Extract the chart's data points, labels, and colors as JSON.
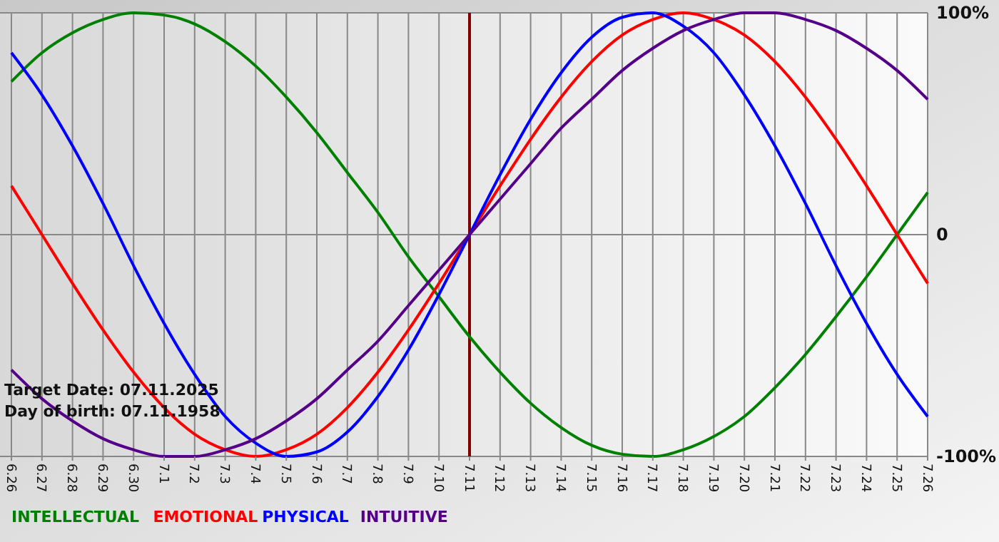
{
  "chart_data": {
    "type": "line",
    "categories": [
      "6.26",
      "6.27",
      "6.28",
      "6.29",
      "6.30",
      "7.1",
      "7.2",
      "7.3",
      "7.4",
      "7.5",
      "7.6",
      "7.7",
      "7.8",
      "7.9",
      "7.10",
      "7.11",
      "7.12",
      "7.13",
      "7.14",
      "7.15",
      "7.16",
      "7.17",
      "7.18",
      "7.19",
      "7.20",
      "7.21",
      "7.22",
      "7.23",
      "7.24",
      "7.25",
      "7.26"
    ],
    "series": [
      {
        "name": "INTELLECTUAL",
        "color": "#008000",
        "values": [
          69,
          82,
          91,
          97,
          100,
          99,
          95,
          87,
          76,
          62,
          46,
          28,
          10,
          -10,
          -28,
          -46,
          -62,
          -76,
          -87,
          -95,
          -99,
          -100,
          -97,
          -91,
          -82,
          -69,
          -54,
          -37,
          -19,
          0,
          19
        ]
      },
      {
        "name": "EMOTIONAL",
        "color": "#ff0000",
        "values": [
          22,
          0,
          -22,
          -43,
          -62,
          -78,
          -90,
          -97,
          -100,
          -97,
          -90,
          -78,
          -62,
          -43,
          -22,
          0,
          22,
          43,
          62,
          78,
          90,
          97,
          100,
          97,
          90,
          78,
          62,
          43,
          22,
          0,
          -22
        ]
      },
      {
        "name": "PHYSICAL",
        "color": "#0000ff",
        "values": [
          82,
          63,
          40,
          14,
          -14,
          -40,
          -63,
          -82,
          -94,
          -100,
          -98,
          -89,
          -73,
          -52,
          -27,
          0,
          27,
          52,
          73,
          89,
          98,
          100,
          94,
          82,
          63,
          40,
          14,
          -14,
          -40,
          -63,
          -82
        ]
      },
      {
        "name": "INTUITIVE",
        "color": "#550088",
        "values": [
          -61,
          -74,
          -84,
          -92,
          -97,
          -100,
          -100,
          -97,
          -92,
          -84,
          -74,
          -61,
          -48,
          -32,
          -16,
          0,
          16,
          32,
          48,
          61,
          74,
          84,
          92,
          97,
          100,
          100,
          97,
          92,
          84,
          74,
          61
        ]
      }
    ],
    "ylim": [
      -100,
      100
    ],
    "yticks": [
      {
        "value": 100,
        "label": "100%"
      },
      0,
      {
        "value": -100,
        "label": "-100%"
      }
    ],
    "grid": true,
    "legend": "bottom left",
    "marker": "none",
    "line_style": "solid",
    "ref_lines": [
      {
        "axis": "x",
        "value": "7.11",
        "color": "#800000"
      }
    ],
    "annotations": [
      "Target Date: 07.11.2025",
      "Day of birth: 07.11.1958"
    ]
  }
}
